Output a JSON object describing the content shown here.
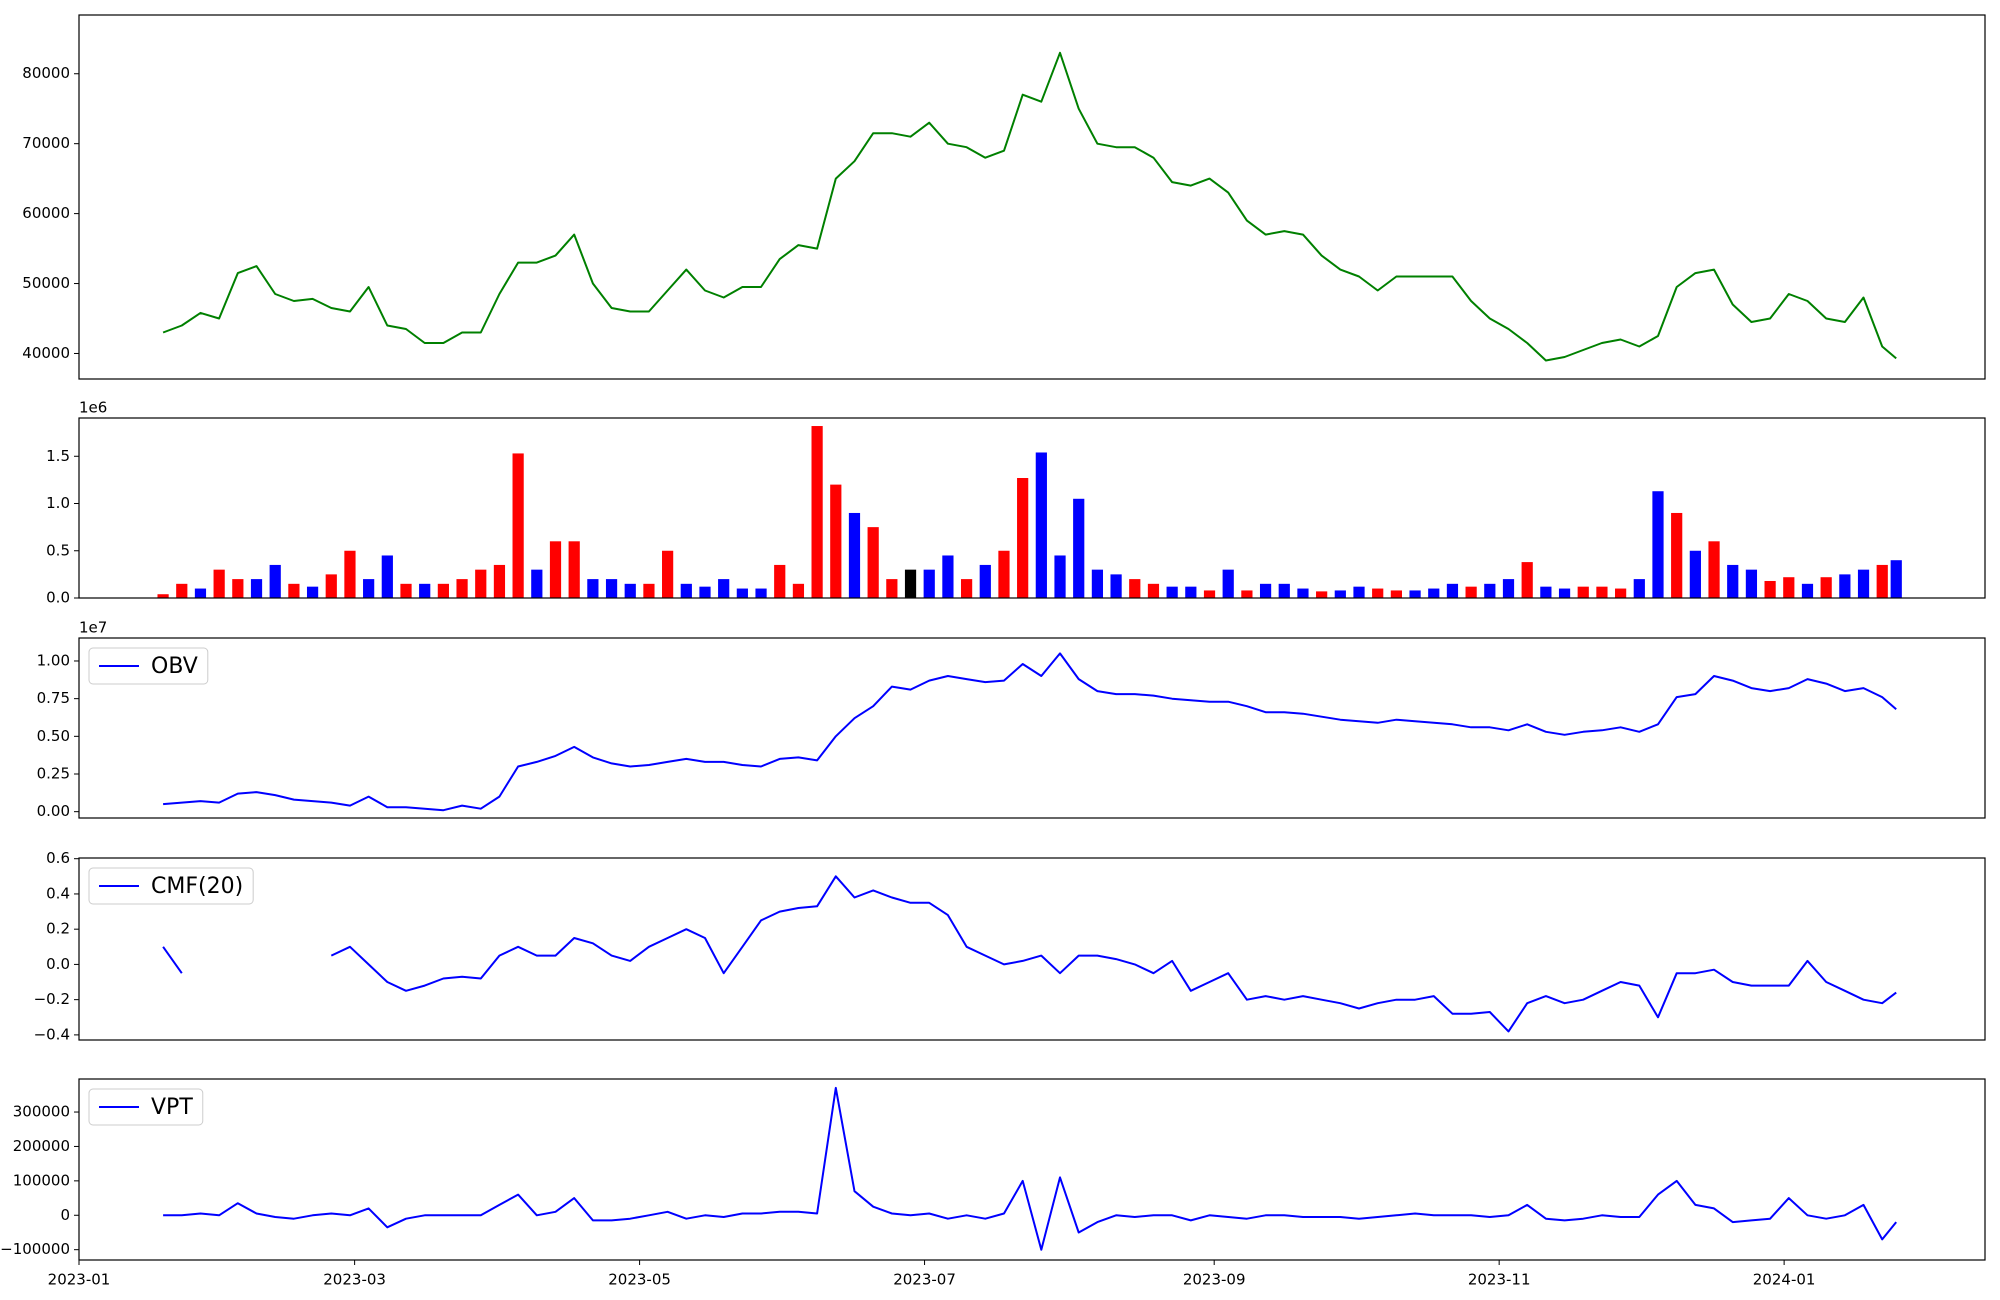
{
  "chart_data": [
    {
      "type": "line",
      "color": "#008000",
      "x": [
        18,
        22,
        26,
        30,
        34,
        38,
        42,
        46,
        50,
        54,
        58,
        62,
        66,
        70,
        74,
        78,
        82,
        86,
        90,
        94,
        98,
        102,
        106,
        110,
        114,
        118,
        122,
        126,
        130,
        134,
        138,
        142,
        146,
        150,
        154,
        158,
        162,
        166,
        170,
        174,
        178,
        182,
        186,
        190,
        194,
        198,
        202,
        206,
        210,
        214,
        218,
        222,
        226,
        230,
        234,
        238,
        242,
        246,
        250,
        254,
        258,
        262,
        266,
        270,
        274,
        278,
        282,
        286,
        290,
        294,
        298,
        302,
        306,
        310,
        314,
        318,
        322,
        326,
        330,
        334,
        338,
        342,
        346,
        350,
        354,
        358,
        362,
        366,
        370,
        374,
        378,
        382,
        386,
        389
      ],
      "values": [
        43000,
        44000,
        45800,
        45000,
        51500,
        52500,
        48500,
        47500,
        47800,
        46500,
        46000,
        49500,
        44000,
        43500,
        41500,
        41500,
        43000,
        43000,
        48500,
        53000,
        53000,
        54000,
        57000,
        50000,
        46500,
        46000,
        46000,
        49000,
        52000,
        49000,
        48000,
        49500,
        49500,
        53500,
        55500,
        55000,
        65000,
        67500,
        71500,
        71500,
        71000,
        73000,
        70000,
        69500,
        68000,
        69000,
        77000,
        76000,
        83000,
        75000,
        70000,
        69500,
        69500,
        68000,
        64500,
        64000,
        65000,
        63000,
        59000,
        57000,
        57500,
        57000,
        54000,
        52000,
        51000,
        49000,
        51000,
        51000,
        51000,
        51000,
        47500,
        45000,
        43500,
        41500,
        39000,
        39500,
        40500,
        41500,
        42000,
        41000,
        42500,
        49500,
        51500,
        52000,
        47000,
        44500,
        45000,
        48500,
        47500,
        45000,
        44500,
        48000,
        41000,
        39300
      ],
      "xlim": [
        0,
        408
      ],
      "ylim": [
        36350,
        88400
      ],
      "yticks": [
        40000,
        50000,
        60000,
        70000,
        80000
      ]
    },
    {
      "type": "bar",
      "offset_label": "1e6",
      "x": [
        18,
        22,
        26,
        30,
        34,
        38,
        42,
        46,
        50,
        54,
        58,
        62,
        66,
        70,
        74,
        78,
        82,
        86,
        90,
        94,
        98,
        102,
        106,
        110,
        114,
        118,
        122,
        126,
        130,
        134,
        138,
        142,
        146,
        150,
        154,
        158,
        162,
        166,
        170,
        174,
        178,
        182,
        186,
        190,
        194,
        198,
        202,
        206,
        210,
        214,
        218,
        222,
        226,
        230,
        234,
        238,
        242,
        246,
        250,
        254,
        258,
        262,
        266,
        270,
        274,
        278,
        282,
        286,
        290,
        294,
        298,
        302,
        306,
        310,
        314,
        318,
        322,
        326,
        330,
        334,
        338,
        342,
        346,
        350,
        354,
        358,
        362,
        366,
        370,
        374,
        378,
        382,
        386,
        389
      ],
      "values": [
        40000,
        150000,
        100000,
        300000,
        200000,
        200000,
        350000,
        150000,
        120000,
        250000,
        500000,
        200000,
        450000,
        150000,
        150000,
        150000,
        200000,
        300000,
        350000,
        1530000,
        300000,
        600000,
        600000,
        200000,
        200000,
        150000,
        150000,
        500000,
        150000,
        120000,
        200000,
        100000,
        100000,
        350000,
        150000,
        1820000,
        1200000,
        900000,
        750000,
        200000,
        300000,
        300000,
        450000,
        200000,
        350000,
        500000,
        1270000,
        1540000,
        450000,
        1050000,
        300000,
        250000,
        200000,
        150000,
        120000,
        120000,
        80000,
        300000,
        80000,
        150000,
        150000,
        100000,
        70000,
        80000,
        120000,
        100000,
        80000,
        80000,
        100000,
        150000,
        120000,
        150000,
        200000,
        380000,
        120000,
        100000,
        120000,
        120000,
        100000,
        200000,
        1130000,
        900000,
        500000,
        600000,
        350000,
        300000,
        180000,
        220000,
        150000,
        220000,
        250000,
        300000,
        350000,
        400000
      ],
      "colors": [
        "red",
        "red",
        "blue",
        "red",
        "red",
        "blue",
        "blue",
        "red",
        "blue",
        "red",
        "red",
        "blue",
        "blue",
        "red",
        "blue",
        "red",
        "red",
        "red",
        "red",
        "red",
        "blue",
        "red",
        "red",
        "blue",
        "blue",
        "blue",
        "red",
        "red",
        "blue",
        "blue",
        "blue",
        "blue",
        "blue",
        "red",
        "red",
        "red",
        "red",
        "blue",
        "red",
        "red",
        "black",
        "blue",
        "blue",
        "red",
        "blue",
        "red",
        "red",
        "blue",
        "blue",
        "blue",
        "blue",
        "blue",
        "red",
        "red",
        "blue",
        "blue",
        "red",
        "blue",
        "red",
        "blue",
        "blue",
        "blue",
        "red",
        "blue",
        "blue",
        "red",
        "red",
        "blue",
        "blue",
        "blue",
        "red",
        "blue",
        "blue",
        "red",
        "blue",
        "blue",
        "red",
        "red",
        "red",
        "blue",
        "blue",
        "red",
        "blue",
        "red",
        "blue",
        "blue",
        "red",
        "red",
        "blue",
        "red",
        "blue",
        "blue",
        "red",
        "blue"
      ],
      "xlim": [
        0,
        408
      ],
      "ylim": [
        0,
        1905000
      ],
      "yticks": [
        {
          "value": 0,
          "label": "0.0"
        },
        {
          "value": 500000,
          "label": "0.5"
        },
        {
          "value": 1000000,
          "label": "1.0"
        },
        {
          "value": 1500000,
          "label": "1.5"
        }
      ]
    },
    {
      "type": "line",
      "offset_label": "1e7",
      "legend": "upper left",
      "x": [
        18,
        22,
        26,
        30,
        34,
        38,
        42,
        46,
        50,
        54,
        58,
        62,
        66,
        70,
        74,
        78,
        82,
        86,
        90,
        94,
        98,
        102,
        106,
        110,
        114,
        118,
        122,
        126,
        130,
        134,
        138,
        142,
        146,
        150,
        154,
        158,
        162,
        166,
        170,
        174,
        178,
        182,
        186,
        190,
        194,
        198,
        202,
        206,
        210,
        214,
        218,
        222,
        226,
        230,
        234,
        238,
        242,
        246,
        250,
        254,
        258,
        262,
        266,
        270,
        274,
        278,
        282,
        286,
        290,
        294,
        298,
        302,
        306,
        310,
        314,
        318,
        322,
        326,
        330,
        334,
        338,
        342,
        346,
        350,
        354,
        358,
        362,
        366,
        370,
        374,
        378,
        382,
        386,
        389
      ],
      "series": [
        {
          "name": "OBV",
          "color": "#0000ff",
          "values": [
            500000,
            600000,
            700000,
            600000,
            1200000,
            1300000,
            1100000,
            800000,
            700000,
            600000,
            400000,
            1000000,
            300000,
            300000,
            200000,
            100000,
            400000,
            200000,
            1000000,
            3000000,
            3300000,
            3700000,
            4300000,
            3600000,
            3200000,
            3000000,
            3100000,
            3300000,
            3500000,
            3300000,
            3300000,
            3100000,
            3000000,
            3500000,
            3600000,
            3400000,
            5000000,
            6200000,
            7000000,
            8300000,
            8100000,
            8700000,
            9000000,
            8800000,
            8600000,
            8700000,
            9800000,
            9000000,
            10500000,
            8800000,
            8000000,
            7800000,
            7800000,
            7700000,
            7500000,
            7400000,
            7300000,
            7300000,
            7000000,
            6600000,
            6600000,
            6500000,
            6300000,
            6100000,
            6000000,
            5900000,
            6100000,
            6000000,
            5900000,
            5800000,
            5600000,
            5600000,
            5400000,
            5800000,
            5300000,
            5100000,
            5300000,
            5400000,
            5600000,
            5300000,
            5800000,
            7600000,
            7800000,
            9000000,
            8700000,
            8200000,
            8000000,
            8200000,
            8800000,
            8500000,
            8000000,
            8200000,
            7600000,
            6800000
          ]
        }
      ],
      "xlim": [
        0,
        408
      ],
      "ylim": [
        -420000,
        11525000
      ],
      "yticks": [
        {
          "value": 0,
          "label": "0.00"
        },
        {
          "value": 2500000,
          "label": "0.25"
        },
        {
          "value": 5000000,
          "label": "0.50"
        },
        {
          "value": 7500000,
          "label": "0.75"
        },
        {
          "value": 10000000,
          "label": "1.00"
        }
      ]
    },
    {
      "type": "line",
      "legend": "upper left",
      "x": [
        18,
        22,
        26,
        30,
        34,
        38,
        42,
        46,
        50,
        54,
        58,
        62,
        66,
        70,
        74,
        78,
        82,
        86,
        90,
        94,
        98,
        102,
        106,
        110,
        114,
        118,
        122,
        126,
        130,
        134,
        138,
        142,
        146,
        150,
        154,
        158,
        162,
        166,
        170,
        174,
        178,
        182,
        186,
        190,
        194,
        198,
        202,
        206,
        210,
        214,
        218,
        222,
        226,
        230,
        234,
        238,
        242,
        246,
        250,
        254,
        258,
        262,
        266,
        270,
        274,
        278,
        282,
        286,
        290,
        294,
        298,
        302,
        306,
        310,
        314,
        318,
        322,
        326,
        330,
        334,
        338,
        342,
        346,
        350,
        354,
        358,
        362,
        366,
        370,
        374,
        378,
        382,
        386,
        389
      ],
      "series": [
        {
          "name": "CMF(20)",
          "color": "#0000ff",
          "values": [
            0.1,
            -0.05,
            null,
            null,
            null,
            null,
            null,
            null,
            null,
            0.05,
            0.1,
            0.0,
            -0.1,
            -0.15,
            -0.12,
            -0.08,
            -0.07,
            -0.08,
            0.05,
            0.1,
            0.05,
            0.05,
            0.15,
            0.12,
            0.05,
            0.02,
            0.1,
            0.15,
            0.2,
            0.15,
            -0.05,
            0.1,
            0.25,
            0.3,
            0.32,
            0.33,
            0.5,
            0.38,
            0.42,
            0.38,
            0.35,
            0.35,
            0.28,
            0.1,
            0.05,
            0.0,
            0.02,
            0.05,
            -0.05,
            0.05,
            0.05,
            0.03,
            0.0,
            -0.05,
            0.02,
            -0.15,
            -0.1,
            -0.05,
            -0.2,
            -0.18,
            -0.2,
            -0.18,
            -0.2,
            -0.22,
            -0.25,
            -0.22,
            -0.2,
            -0.2,
            -0.18,
            -0.28,
            -0.28,
            -0.27,
            -0.38,
            -0.22,
            -0.18,
            -0.22,
            -0.2,
            -0.15,
            -0.1,
            -0.12,
            -0.3,
            -0.05,
            -0.05,
            -0.03,
            -0.1,
            -0.12,
            -0.12,
            -0.12,
            0.02,
            -0.1,
            -0.15,
            -0.2,
            -0.22,
            -0.16
          ]
        }
      ],
      "xlim": [
        0,
        408
      ],
      "ylim": [
        -0.429,
        0.604
      ],
      "yticks": [
        {
          "value": -0.4,
          "label": "−0.4"
        },
        {
          "value": -0.2,
          "label": "−0.2"
        },
        {
          "value": 0,
          "label": "0.0"
        },
        0.2,
        0.4,
        0.6
      ]
    },
    {
      "type": "line",
      "legend": "upper left",
      "x": [
        18,
        22,
        26,
        30,
        34,
        38,
        42,
        46,
        50,
        54,
        58,
        62,
        66,
        70,
        74,
        78,
        82,
        86,
        90,
        94,
        98,
        102,
        106,
        110,
        114,
        118,
        122,
        126,
        130,
        134,
        138,
        142,
        146,
        150,
        154,
        158,
        162,
        166,
        170,
        174,
        178,
        182,
        186,
        190,
        194,
        198,
        202,
        206,
        210,
        214,
        218,
        222,
        226,
        230,
        234,
        238,
        242,
        246,
        250,
        254,
        258,
        262,
        266,
        270,
        274,
        278,
        282,
        286,
        290,
        294,
        298,
        302,
        306,
        310,
        314,
        318,
        322,
        326,
        330,
        334,
        338,
        342,
        346,
        350,
        354,
        358,
        362,
        366,
        370,
        374,
        378,
        382,
        386,
        389
      ],
      "series": [
        {
          "name": "VPT",
          "color": "#0000ff",
          "values": [
            0,
            0,
            5000,
            0,
            35000,
            5000,
            -5000,
            -10000,
            0,
            5000,
            0,
            20000,
            -35000,
            -10000,
            0,
            0,
            0,
            0,
            30000,
            60000,
            0,
            10000,
            50000,
            -15000,
            -15000,
            -10000,
            0,
            10000,
            -10000,
            0,
            -5000,
            5000,
            5000,
            10000,
            10000,
            5000,
            370000,
            70000,
            25000,
            5000,
            0,
            5000,
            -10000,
            0,
            -10000,
            5000,
            100000,
            -100000,
            110000,
            -50000,
            -20000,
            0,
            -5000,
            0,
            0,
            -15000,
            0,
            -5000,
            -10000,
            0,
            0,
            -5000,
            -5000,
            -5000,
            -10000,
            -5000,
            0,
            5000,
            0,
            0,
            0,
            -5000,
            0,
            30000,
            -10000,
            -15000,
            -10000,
            0,
            -5000,
            -5000,
            60000,
            100000,
            30000,
            20000,
            -20000,
            -15000,
            -10000,
            50000,
            0,
            -10000,
            0,
            30000,
            -70000,
            -20000
          ]
        }
      ],
      "xlim": [
        0,
        408
      ],
      "ylim": [
        -130000,
        396000
      ],
      "yticks": [
        {
          "value": -100000,
          "label": "−100000"
        },
        0,
        100000,
        200000,
        300000
      ],
      "xticks": [
        {
          "value": 0,
          "label": "2023-01"
        },
        {
          "value": 59,
          "label": "2023-03"
        },
        {
          "value": 120,
          "label": "2023-05"
        },
        {
          "value": 181,
          "label": "2023-07"
        },
        {
          "value": 243,
          "label": "2023-09"
        },
        {
          "value": 304,
          "label": "2023-11"
        },
        {
          "value": 365,
          "label": "2024-01"
        }
      ]
    }
  ]
}
